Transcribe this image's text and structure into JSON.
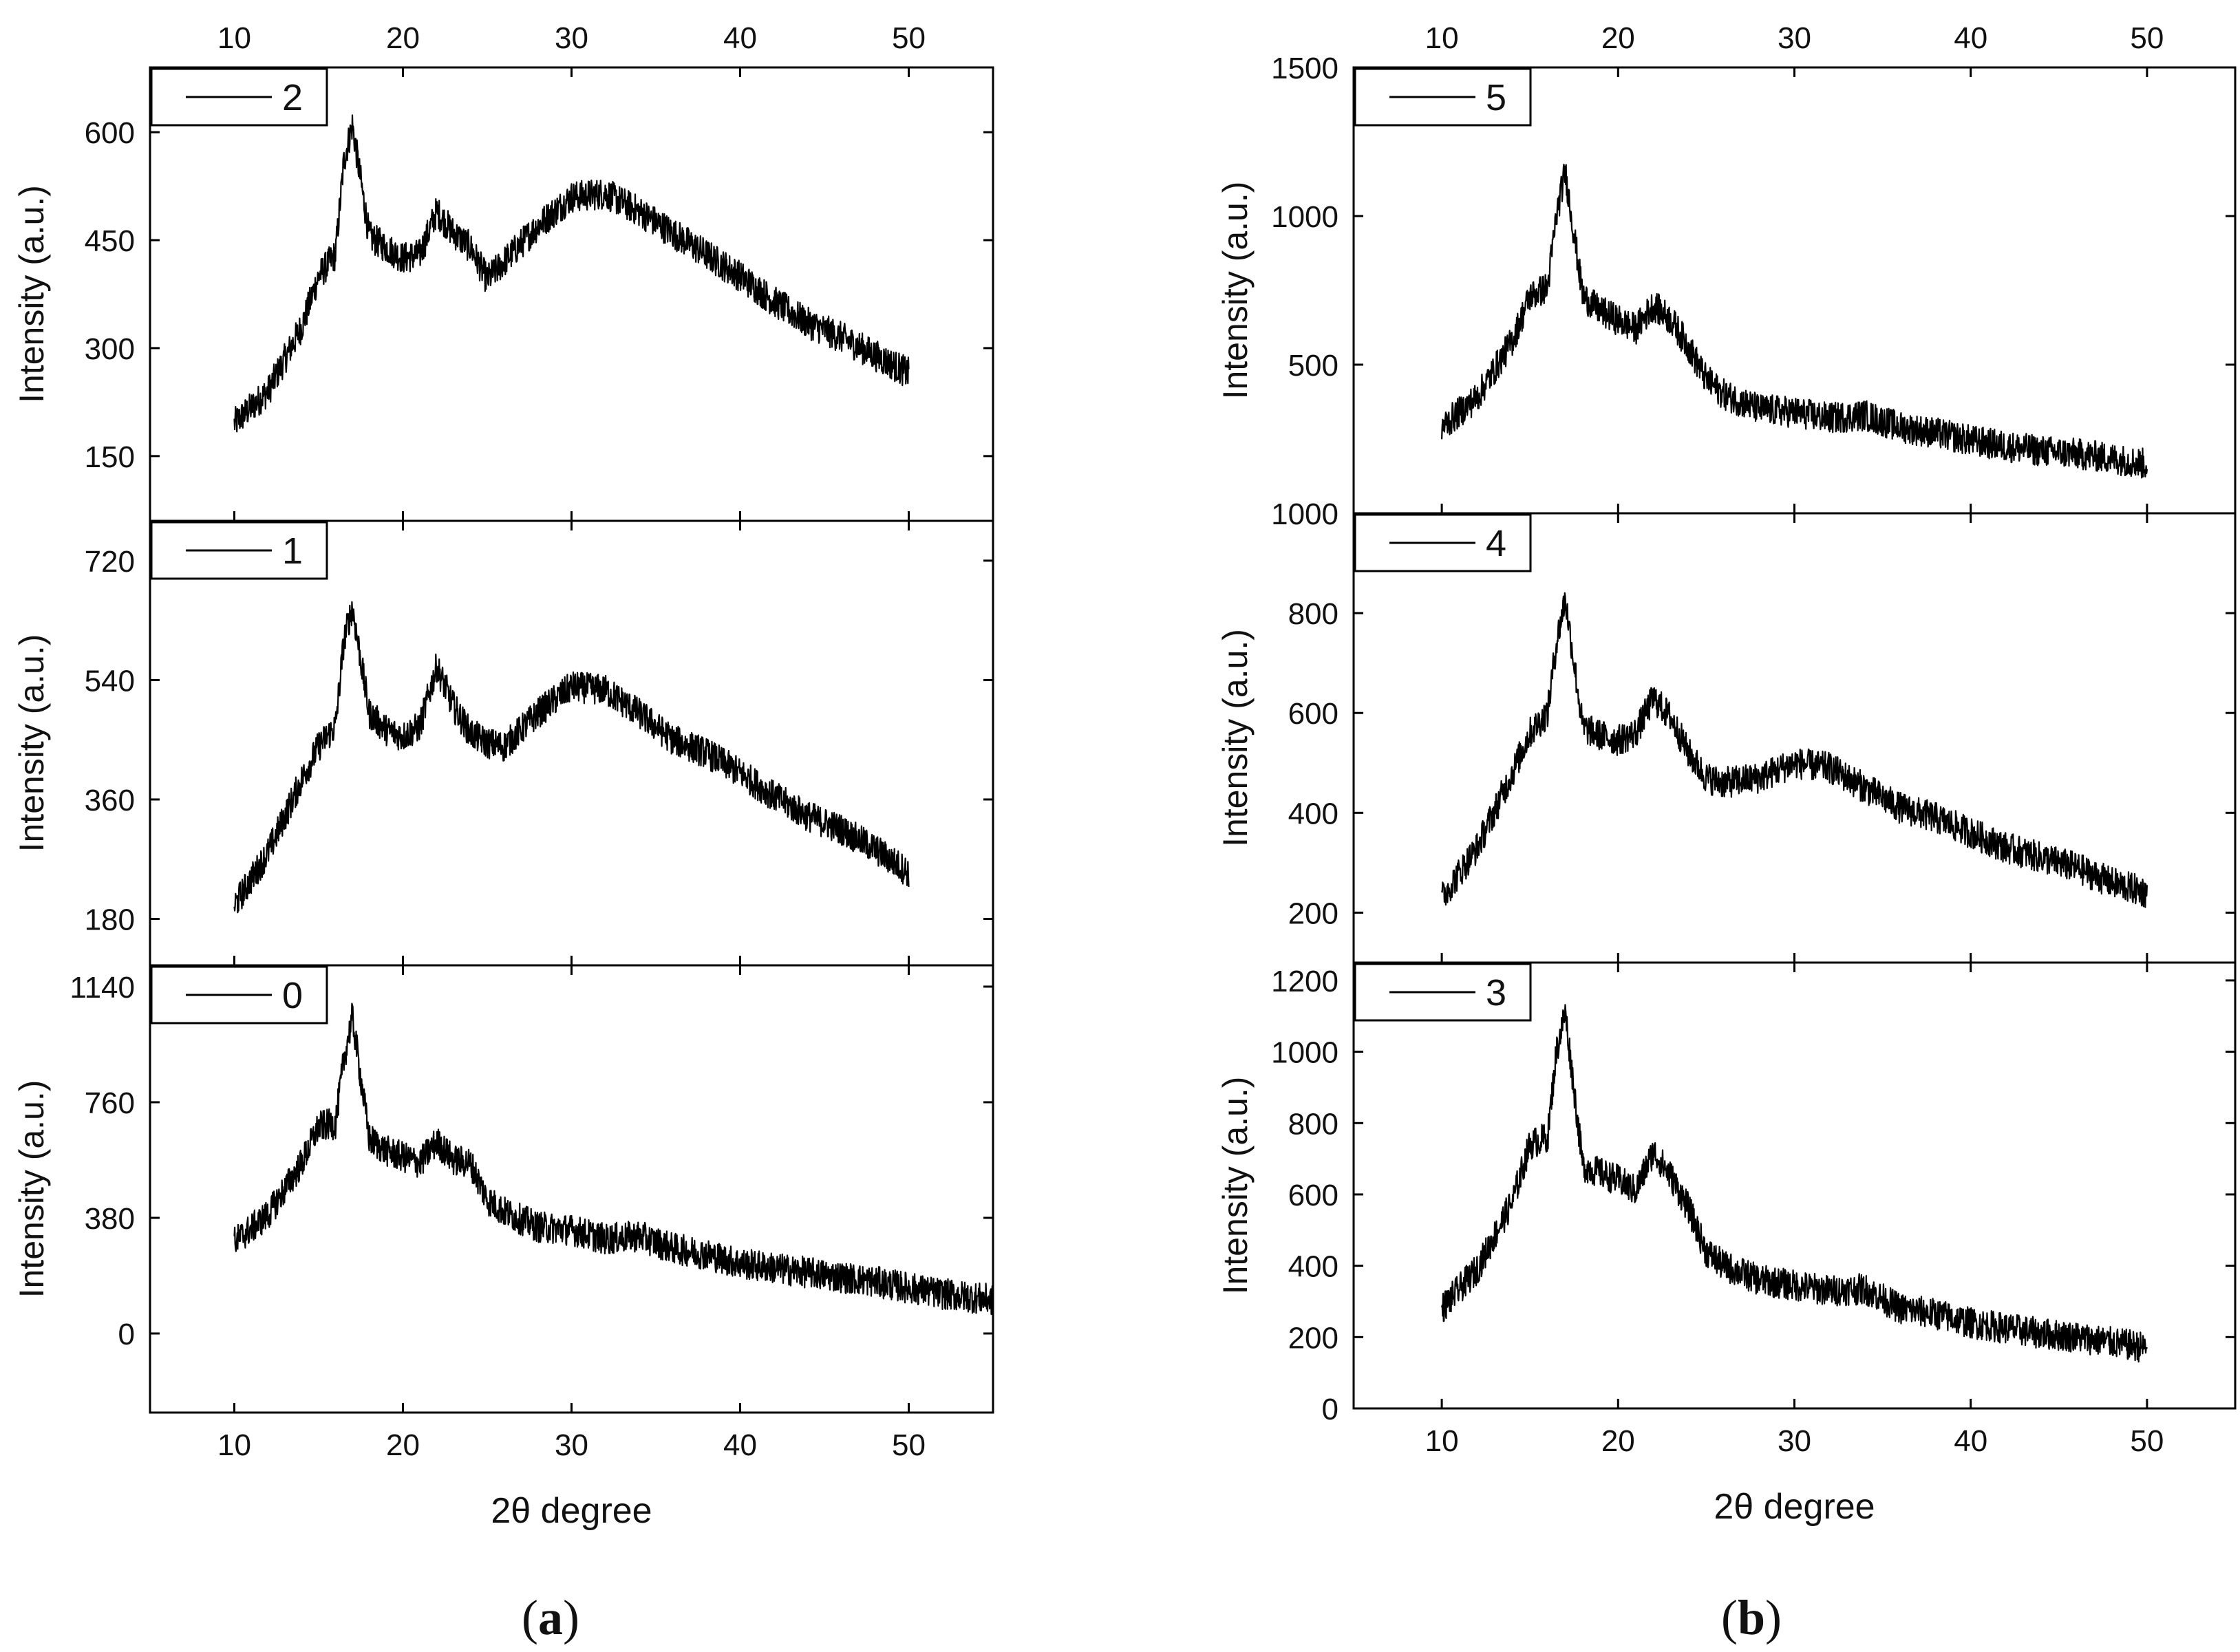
{
  "figure": {
    "captions": [
      {
        "prefix": "(",
        "letter": "a",
        "suffix": ")"
      },
      {
        "prefix": "(",
        "letter": "b",
        "suffix": ")"
      }
    ]
  },
  "chart_data": [
    {
      "id": "a-2",
      "group": "a",
      "type": "line",
      "legend": "2",
      "ylabel": "Intensity (a.u.)",
      "xlim": [
        5,
        55
      ],
      "ylim": [
        60,
        690
      ],
      "yticks": [
        150,
        300,
        450,
        600
      ],
      "xticks_top": [
        10,
        20,
        30,
        40,
        50
      ],
      "series": [
        {
          "name": "2",
          "x": [
            10,
            12,
            14,
            15,
            16,
            16.5,
            17,
            18,
            19,
            20,
            21,
            22,
            23,
            24,
            25,
            26,
            28,
            30,
            32,
            34,
            36,
            38,
            40,
            42,
            44,
            46,
            48,
            50
          ],
          "y": [
            195,
            240,
            330,
            400,
            430,
            560,
            610,
            455,
            440,
            425,
            430,
            490,
            460,
            440,
            395,
            420,
            470,
            510,
            515,
            490,
            460,
            430,
            400,
            365,
            335,
            315,
            290,
            265
          ]
        }
      ]
    },
    {
      "id": "a-1",
      "group": "a",
      "type": "line",
      "legend": "1",
      "ylabel": "Intensity (a.u.)",
      "xlim": [
        5,
        55
      ],
      "ylim": [
        110,
        780
      ],
      "yticks": [
        180,
        360,
        540,
        720
      ],
      "series": [
        {
          "name": "1",
          "x": [
            10,
            12,
            14,
            15,
            16,
            16.5,
            17,
            18,
            19,
            20,
            21,
            22,
            23,
            24,
            25,
            26,
            28,
            30,
            32,
            34,
            36,
            38,
            40,
            42,
            44,
            46,
            48,
            50
          ],
          "y": [
            200,
            280,
            390,
            440,
            470,
            600,
            650,
            490,
            465,
            455,
            470,
            560,
            500,
            460,
            445,
            440,
            490,
            530,
            525,
            490,
            450,
            430,
            400,
            365,
            335,
            315,
            285,
            250
          ]
        }
      ]
    },
    {
      "id": "a-0",
      "group": "a",
      "type": "line",
      "legend": "0",
      "ylabel": "Intensity (a.u.)",
      "xlabel": "2θ degree",
      "xlim": [
        5,
        55
      ],
      "ylim": [
        -260,
        1210
      ],
      "yticks": [
        0,
        380,
        760,
        1140
      ],
      "xticks": [
        10,
        20,
        30,
        40,
        50
      ],
      "series": [
        {
          "name": "0",
          "x": [
            10,
            12,
            14,
            15,
            16,
            16.5,
            17,
            18,
            19,
            20,
            21,
            22,
            23,
            24,
            25,
            26,
            28,
            30,
            32,
            34,
            36,
            38,
            40,
            42,
            44,
            46,
            48,
            50,
            52,
            55
          ],
          "y": [
            300,
            390,
            560,
            680,
            690,
            900,
            1040,
            640,
            600,
            580,
            560,
            630,
            570,
            560,
            440,
            400,
            350,
            340,
            310,
            320,
            280,
            260,
            230,
            215,
            200,
            185,
            170,
            150,
            130,
            110
          ]
        }
      ]
    },
    {
      "id": "b-5",
      "group": "b",
      "type": "line",
      "legend": "5",
      "ylabel": "Intensity (a.u.)",
      "xlim": [
        5,
        55
      ],
      "ylim": [
        0,
        1500
      ],
      "yticks": [
        500,
        1000,
        1500
      ],
      "xticks_top": [
        10,
        20,
        30,
        40,
        50
      ],
      "series": [
        {
          "name": "5",
          "x": [
            10,
            12,
            14,
            15,
            16,
            16.5,
            17,
            18,
            19,
            20,
            21,
            22,
            23,
            24,
            25,
            26,
            28,
            30,
            32,
            34,
            36,
            38,
            40,
            42,
            44,
            46,
            48,
            50
          ],
          "y": [
            290,
            390,
            580,
            730,
            760,
            1000,
            1150,
            730,
            680,
            650,
            620,
            700,
            650,
            560,
            450,
            400,
            350,
            340,
            320,
            330,
            290,
            270,
            245,
            225,
            210,
            200,
            185,
            165
          ]
        }
      ]
    },
    {
      "id": "b-4",
      "group": "b",
      "type": "line",
      "legend": "4",
      "ylabel": "Intensity (a.u.)",
      "xlim": [
        5,
        55
      ],
      "ylim": [
        100,
        1000
      ],
      "yticks": [
        200,
        400,
        600,
        800,
        1000
      ],
      "series": [
        {
          "name": "4",
          "x": [
            10,
            12,
            14,
            15,
            16,
            16.5,
            17,
            18,
            19,
            20,
            21,
            22,
            23,
            24,
            25,
            26,
            28,
            30,
            32,
            34,
            36,
            38,
            40,
            42,
            44,
            46,
            48,
            50
          ],
          "y": [
            230,
            330,
            480,
            560,
            600,
            740,
            830,
            570,
            555,
            545,
            560,
            630,
            590,
            520,
            470,
            460,
            470,
            500,
            490,
            450,
            410,
            390,
            360,
            330,
            310,
            290,
            260,
            240
          ]
        }
      ]
    },
    {
      "id": "b-3",
      "group": "b",
      "type": "line",
      "legend": "3",
      "ylabel": "Intensity (a.u.)",
      "xlabel": "2θ degree",
      "xlim": [
        5,
        55
      ],
      "ylim": [
        0,
        1250
      ],
      "yticks": [
        0,
        200,
        400,
        600,
        800,
        1000,
        1200
      ],
      "xticks": [
        10,
        20,
        30,
        40,
        50
      ],
      "series": [
        {
          "name": "3",
          "x": [
            10,
            12,
            14,
            15,
            16,
            16.5,
            17,
            18,
            19,
            20,
            21,
            22,
            23,
            24,
            25,
            26,
            28,
            30,
            32,
            34,
            36,
            38,
            40,
            42,
            44,
            46,
            48,
            50
          ],
          "y": [
            280,
            390,
            580,
            740,
            760,
            1000,
            1110,
            680,
            660,
            640,
            610,
            720,
            650,
            560,
            440,
            400,
            360,
            345,
            330,
            335,
            280,
            265,
            240,
            225,
            210,
            200,
            185,
            170
          ]
        }
      ]
    }
  ]
}
